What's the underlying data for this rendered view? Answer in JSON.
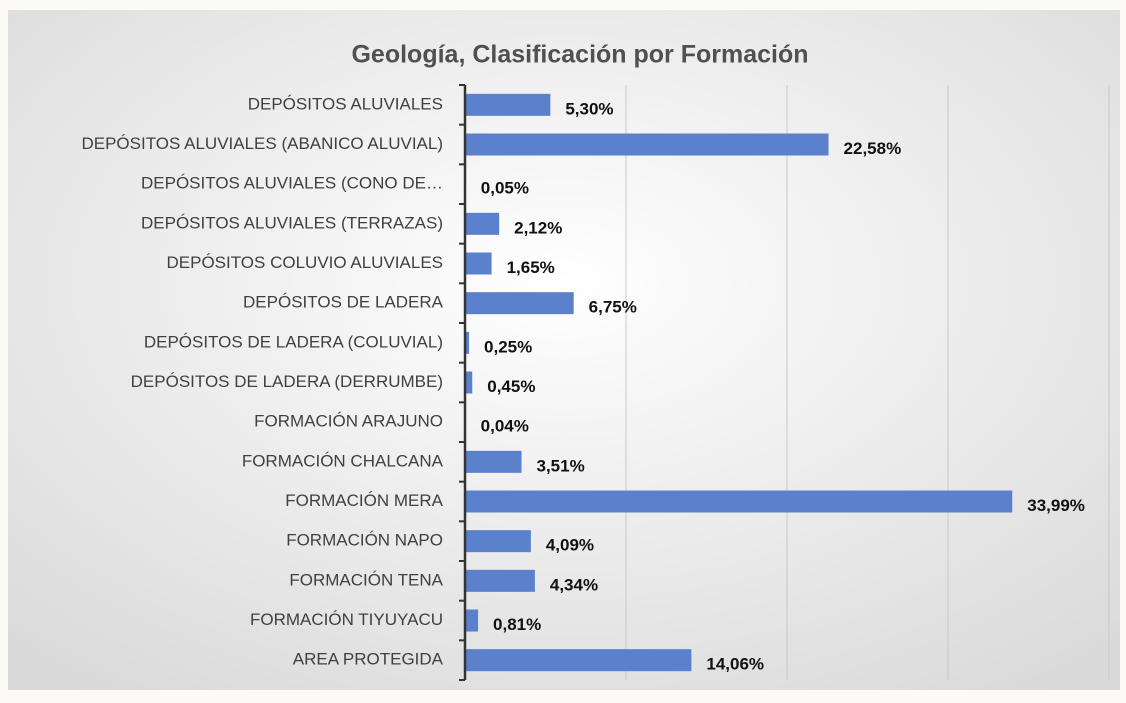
{
  "chart_data": {
    "type": "bar",
    "orientation": "horizontal",
    "title": "Geología, Clasificación por Formación",
    "categories": [
      "DEPÓSITOS ALUVIALES",
      "DEPÓSITOS ALUVIALES (ABANICO ALUVIAL)",
      "DEPÓSITOS ALUVIALES (CONO DE…",
      "DEPÓSITOS ALUVIALES (TERRAZAS)",
      "DEPÓSITOS COLUVIO ALUVIALES",
      "DEPÓSITOS DE LADERA",
      "DEPÓSITOS DE LADERA (COLUVIAL)",
      "DEPÓSITOS DE LADERA (DERRUMBE)",
      "FORMACIÓN ARAJUNO",
      "FORMACIÓN CHALCANA",
      "FORMACIÓN MERA",
      "FORMACIÓN NAPO",
      "FORMACIÓN TENA",
      "FORMACIÓN TIYUYACU",
      "AREA PROTEGIDA"
    ],
    "values": [
      5.3,
      22.58,
      0.05,
      2.12,
      1.65,
      6.75,
      0.25,
      0.45,
      0.04,
      3.51,
      33.99,
      4.09,
      4.34,
      0.81,
      14.06
    ],
    "value_labels": [
      "5,30%",
      "22,58%",
      "0,05%",
      "2,12%",
      "1,65%",
      "6,75%",
      "0,25%",
      "0,45%",
      "0,04%",
      "3,51%",
      "33,99%",
      "4,09%",
      "4,34%",
      "0,81%",
      "14,06%"
    ],
    "color": "#5b80cc",
    "xlim": [
      0,
      40
    ],
    "xticks": [
      0,
      10,
      20,
      30,
      40
    ],
    "grid": true
  }
}
